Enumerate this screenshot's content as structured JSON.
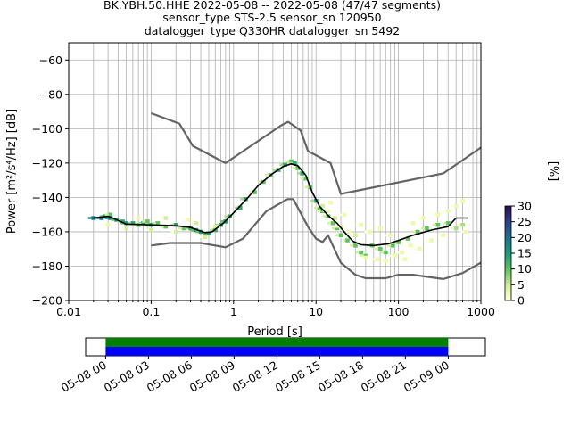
{
  "title_lines": [
    "BK.YBH.50.HHE   2022-05-08 -- 2022-05-08  (47/47 segments)",
    "sensor_type STS-2.5 sensor_sn 120950",
    "datalogger_type Q330HR datalogger_sn 5492"
  ],
  "colorbar_label": "[%]",
  "colors": {
    "noise_model": "#646464",
    "mode": "#000000",
    "grid": "#b0b0b0",
    "coverage_green": "#008000",
    "coverage_blue": "#0000ff"
  },
  "chart_data": [
    {
      "type": "heatmap",
      "xscale": "log",
      "xlabel": "Period [s]",
      "ylabel": "Power [m²/s⁴/Hz] [dB]",
      "xlim": [
        0.01,
        1000
      ],
      "ylim": [
        -200,
        -50
      ],
      "xticks": [
        {
          "value": 0.01,
          "label": "0.01"
        },
        {
          "value": 0.1,
          "label": "0.1"
        },
        {
          "value": 1,
          "label": "1"
        },
        {
          "value": 10,
          "label": "10"
        },
        {
          "value": 100,
          "label": "100"
        },
        {
          "value": 1000,
          "label": "1000"
        }
      ],
      "yticks": [
        -200,
        -180,
        -160,
        -140,
        -120,
        -100,
        -80,
        -60
      ],
      "grid": true,
      "series": [
        {
          "role": "high-noise-model",
          "points": [
            [
              0.1,
              -91
            ],
            [
              0.22,
              -97
            ],
            [
              0.32,
              -110
            ],
            [
              0.8,
              -120
            ],
            [
              3.8,
              -98
            ],
            [
              4.6,
              -96
            ],
            [
              6.5,
              -101
            ],
            [
              8,
              -113
            ],
            [
              15,
              -120
            ],
            [
              20,
              -138
            ],
            [
              350,
              -126
            ],
            [
              1000,
              -111
            ]
          ]
        },
        {
          "role": "low-noise-model",
          "points": [
            [
              0.1,
              -168
            ],
            [
              0.17,
              -166.5
            ],
            [
              0.4,
              -166.5
            ],
            [
              0.8,
              -169
            ],
            [
              1.3,
              -164
            ],
            [
              2.5,
              -148
            ],
            [
              4.5,
              -141
            ],
            [
              5.3,
              -141
            ],
            [
              8,
              -157
            ],
            [
              10,
              -164
            ],
            [
              12,
              -166
            ],
            [
              14,
              -162
            ],
            [
              20,
              -178
            ],
            [
              30,
              -185
            ],
            [
              40,
              -187
            ],
            [
              70,
              -187
            ],
            [
              100,
              -185
            ],
            [
              150,
              -185
            ],
            [
              350,
              -187.5
            ],
            [
              600,
              -184
            ],
            [
              1000,
              -178
            ]
          ]
        },
        {
          "role": "mode",
          "points": [
            [
              0.02,
              -152
            ],
            [
              0.03,
              -151
            ],
            [
              0.034,
              -152
            ],
            [
              0.05,
              -155.5
            ],
            [
              0.1,
              -156
            ],
            [
              0.2,
              -156.5
            ],
            [
              0.3,
              -157.5
            ],
            [
              0.45,
              -160.5
            ],
            [
              0.55,
              -160
            ],
            [
              0.75,
              -155
            ],
            [
              1,
              -149
            ],
            [
              1.5,
              -140
            ],
            [
              2,
              -133
            ],
            [
              3,
              -126
            ],
            [
              4,
              -122
            ],
            [
              5,
              -120.5
            ],
            [
              6,
              -121.5
            ],
            [
              7.5,
              -127
            ],
            [
              9,
              -137
            ],
            [
              11,
              -145
            ],
            [
              14,
              -150.5
            ],
            [
              18,
              -155
            ],
            [
              22,
              -160
            ],
            [
              28,
              -165.5
            ],
            [
              35,
              -167.5
            ],
            [
              50,
              -168
            ],
            [
              75,
              -167
            ],
            [
              100,
              -165
            ],
            [
              150,
              -162
            ],
            [
              250,
              -159
            ],
            [
              400,
              -157
            ],
            [
              500,
              -152
            ],
            [
              700,
              -152
            ]
          ]
        }
      ],
      "density_cells": [
        [
          0.02,
          -152,
          22
        ],
        [
          0.025,
          -152,
          24
        ],
        [
          0.028,
          -151,
          18
        ],
        [
          0.032,
          -150,
          12
        ],
        [
          0.032,
          -152,
          22
        ],
        [
          0.038,
          -153,
          18
        ],
        [
          0.045,
          -154,
          15
        ],
        [
          0.05,
          -155,
          16
        ],
        [
          0.06,
          -155,
          14
        ],
        [
          0.07,
          -156,
          12
        ],
        [
          0.08,
          -155,
          13
        ],
        [
          0.09,
          -154,
          10
        ],
        [
          0.1,
          -156,
          14
        ],
        [
          0.12,
          -155,
          12
        ],
        [
          0.15,
          -157,
          11
        ],
        [
          0.2,
          -156,
          14
        ],
        [
          0.25,
          -158,
          12
        ],
        [
          0.3,
          -158,
          14
        ],
        [
          0.35,
          -159,
          16
        ],
        [
          0.4,
          -160,
          18
        ],
        [
          0.5,
          -161,
          16
        ],
        [
          0.6,
          -159,
          15
        ],
        [
          0.7,
          -156,
          14
        ],
        [
          0.8,
          -154,
          16
        ],
        [
          0.9,
          -151,
          15
        ],
        [
          1.2,
          -146,
          14
        ],
        [
          1.4,
          -141,
          13
        ],
        [
          1.8,
          -137,
          12
        ],
        [
          2.3,
          -131,
          12
        ],
        [
          2.8,
          -127,
          12
        ],
        [
          3.5,
          -124,
          14
        ],
        [
          4.2,
          -121,
          14
        ],
        [
          5,
          -119,
          12
        ],
        [
          5.5,
          -120,
          14
        ],
        [
          6,
          -123,
          12
        ],
        [
          6.8,
          -126,
          14
        ],
        [
          7.5,
          -129,
          12
        ],
        [
          8.5,
          -134,
          12
        ],
        [
          10,
          -142,
          14
        ],
        [
          11,
          -146,
          12
        ],
        [
          12,
          -148,
          11
        ],
        [
          14,
          -151,
          12
        ],
        [
          16,
          -155,
          12
        ],
        [
          18,
          -158,
          11
        ],
        [
          20,
          -162,
          12
        ],
        [
          24,
          -165,
          10
        ],
        [
          30,
          -168,
          10
        ],
        [
          35,
          -172,
          12
        ],
        [
          40,
          -174,
          10
        ],
        [
          48,
          -168,
          12
        ],
        [
          60,
          -170,
          10
        ],
        [
          70,
          -172,
          10
        ],
        [
          85,
          -168,
          11
        ],
        [
          100,
          -166,
          11
        ],
        [
          130,
          -164,
          10
        ],
        [
          170,
          -160,
          10
        ],
        [
          220,
          -158,
          11
        ],
        [
          300,
          -156,
          12
        ],
        [
          400,
          -155,
          11
        ],
        [
          500,
          -158,
          9
        ],
        [
          600,
          -156,
          8
        ],
        [
          0.03,
          -156,
          3
        ],
        [
          0.05,
          -158,
          4
        ],
        [
          0.07,
          -152,
          3
        ],
        [
          0.1,
          -159,
          5
        ],
        [
          0.15,
          -152,
          4
        ],
        [
          0.2,
          -160,
          4
        ],
        [
          0.28,
          -153,
          3
        ],
        [
          0.35,
          -155,
          6
        ],
        [
          0.45,
          -163,
          5
        ],
        [
          0.6,
          -157,
          4
        ],
        [
          12,
          -145,
          4
        ],
        [
          14,
          -148,
          3
        ],
        [
          15,
          -143,
          3
        ],
        [
          17,
          -152,
          4
        ],
        [
          20,
          -157,
          4
        ],
        [
          22,
          -150,
          3
        ],
        [
          25,
          -160,
          3
        ],
        [
          30,
          -162,
          4
        ],
        [
          35,
          -156,
          3
        ],
        [
          40,
          -175,
          3
        ],
        [
          45,
          -160,
          2
        ],
        [
          55,
          -176,
          3
        ],
        [
          60,
          -158,
          2
        ],
        [
          70,
          -177,
          3
        ],
        [
          80,
          -162,
          2
        ],
        [
          90,
          -174,
          3
        ],
        [
          110,
          -172,
          3
        ],
        [
          140,
          -168,
          2
        ],
        [
          180,
          -170,
          2
        ],
        [
          250,
          -165,
          2
        ],
        [
          300,
          -150,
          2
        ],
        [
          400,
          -148,
          2
        ],
        [
          500,
          -145,
          3
        ],
        [
          600,
          -142,
          2
        ],
        [
          650,
          -160,
          2
        ],
        [
          350,
          -162,
          2
        ],
        [
          120,
          -176,
          2
        ],
        [
          150,
          -155,
          2
        ],
        [
          200,
          -152,
          2
        ]
      ]
    },
    {
      "type": "colorbar",
      "label": "[%]",
      "range": [
        0,
        30
      ],
      "ticks": [
        {
          "value": 0,
          "label": "0"
        },
        {
          "value": 5,
          "label": "5"
        },
        {
          "value": 10,
          "label": "10"
        },
        {
          "value": 15,
          "label": "15"
        },
        {
          "value": 20,
          "label": "20"
        },
        {
          "value": 25,
          "label": "25"
        },
        {
          "value": 30,
          "label": "30"
        }
      ]
    },
    {
      "type": "timeline",
      "xlim": [
        "2022-05-07T22:36",
        "2022-05-09T02:36"
      ],
      "ticks": [
        {
          "value": "2022-05-08T00:00",
          "label": "05-08 00"
        },
        {
          "value": "2022-05-08T03:00",
          "label": "05-08 03"
        },
        {
          "value": "2022-05-08T06:00",
          "label": "05-08 06"
        },
        {
          "value": "2022-05-08T09:00",
          "label": "05-08 09"
        },
        {
          "value": "2022-05-08T12:00",
          "label": "05-08 12"
        },
        {
          "value": "2022-05-08T15:00",
          "label": "05-08 15"
        },
        {
          "value": "2022-05-08T18:00",
          "label": "05-08 18"
        },
        {
          "value": "2022-05-08T21:00",
          "label": "05-08 21"
        },
        {
          "value": "2022-05-09T00:00",
          "label": "05-09 00"
        }
      ],
      "bars": [
        {
          "role": "data-coverage",
          "start": "2022-05-08T00:00",
          "end": "2022-05-09T00:00",
          "color": "#008000"
        },
        {
          "role": "psd-coverage",
          "start": "2022-05-08T00:00",
          "end": "2022-05-09T00:00",
          "color": "#0000ff"
        }
      ]
    }
  ]
}
